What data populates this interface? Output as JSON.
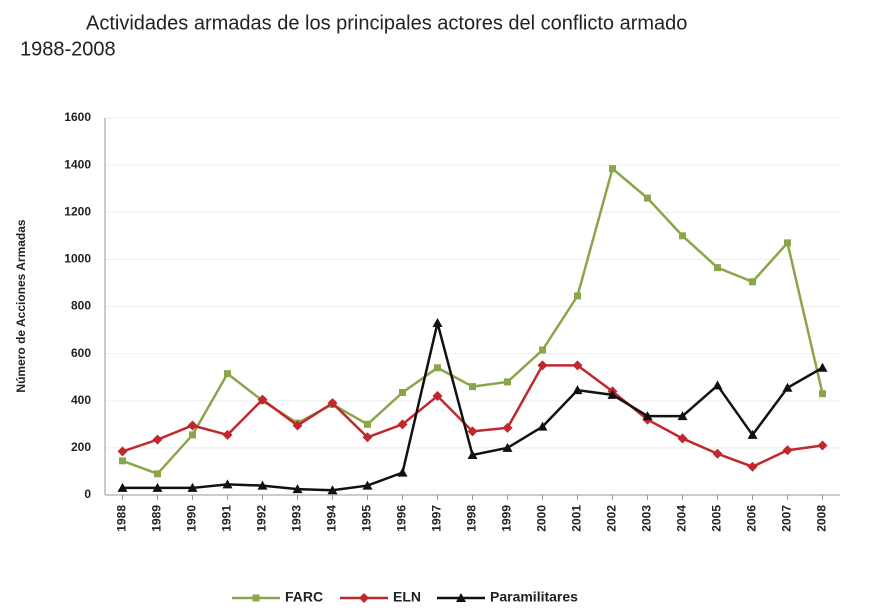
{
  "chart_data": {
    "type": "line",
    "title": "Actividades armadas de los principales actores del conflicto armado",
    "subtitle": "1988-2008",
    "y_label": "Número de Acciones Armadas",
    "categories": [
      "1988",
      "1989",
      "1990",
      "1991",
      "1992",
      "1993",
      "1994",
      "1995",
      "1996",
      "1997",
      "1998",
      "1999",
      "2000",
      "2001",
      "2002",
      "2003",
      "2004",
      "2005",
      "2006",
      "2007",
      "2008"
    ],
    "series": [
      {
        "name": "FARC",
        "color": "#8aa64a",
        "marker": "square",
        "values": [
          145,
          90,
          255,
          515,
          400,
          305,
          385,
          300,
          435,
          540,
          460,
          480,
          615,
          845,
          1385,
          1260,
          1100,
          965,
          905,
          1070,
          430
        ]
      },
      {
        "name": "ELN",
        "color": "#c0282c",
        "marker": "diamond",
        "values": [
          185,
          235,
          295,
          255,
          405,
          295,
          390,
          245,
          300,
          420,
          270,
          285,
          550,
          550,
          440,
          320,
          240,
          175,
          120,
          190,
          210
        ]
      },
      {
        "name": "Paramilitares",
        "color": "#111111",
        "marker": "triangle",
        "values": [
          30,
          30,
          30,
          45,
          40,
          25,
          20,
          40,
          95,
          730,
          170,
          200,
          290,
          445,
          425,
          335,
          335,
          465,
          255,
          455,
          540
        ]
      }
    ],
    "ylim": [
      0,
      1600
    ],
    "yticks": [
      0,
      200,
      400,
      600,
      800,
      1000,
      1200,
      1400,
      1600
    ],
    "grid": true,
    "legend": "bottom"
  }
}
